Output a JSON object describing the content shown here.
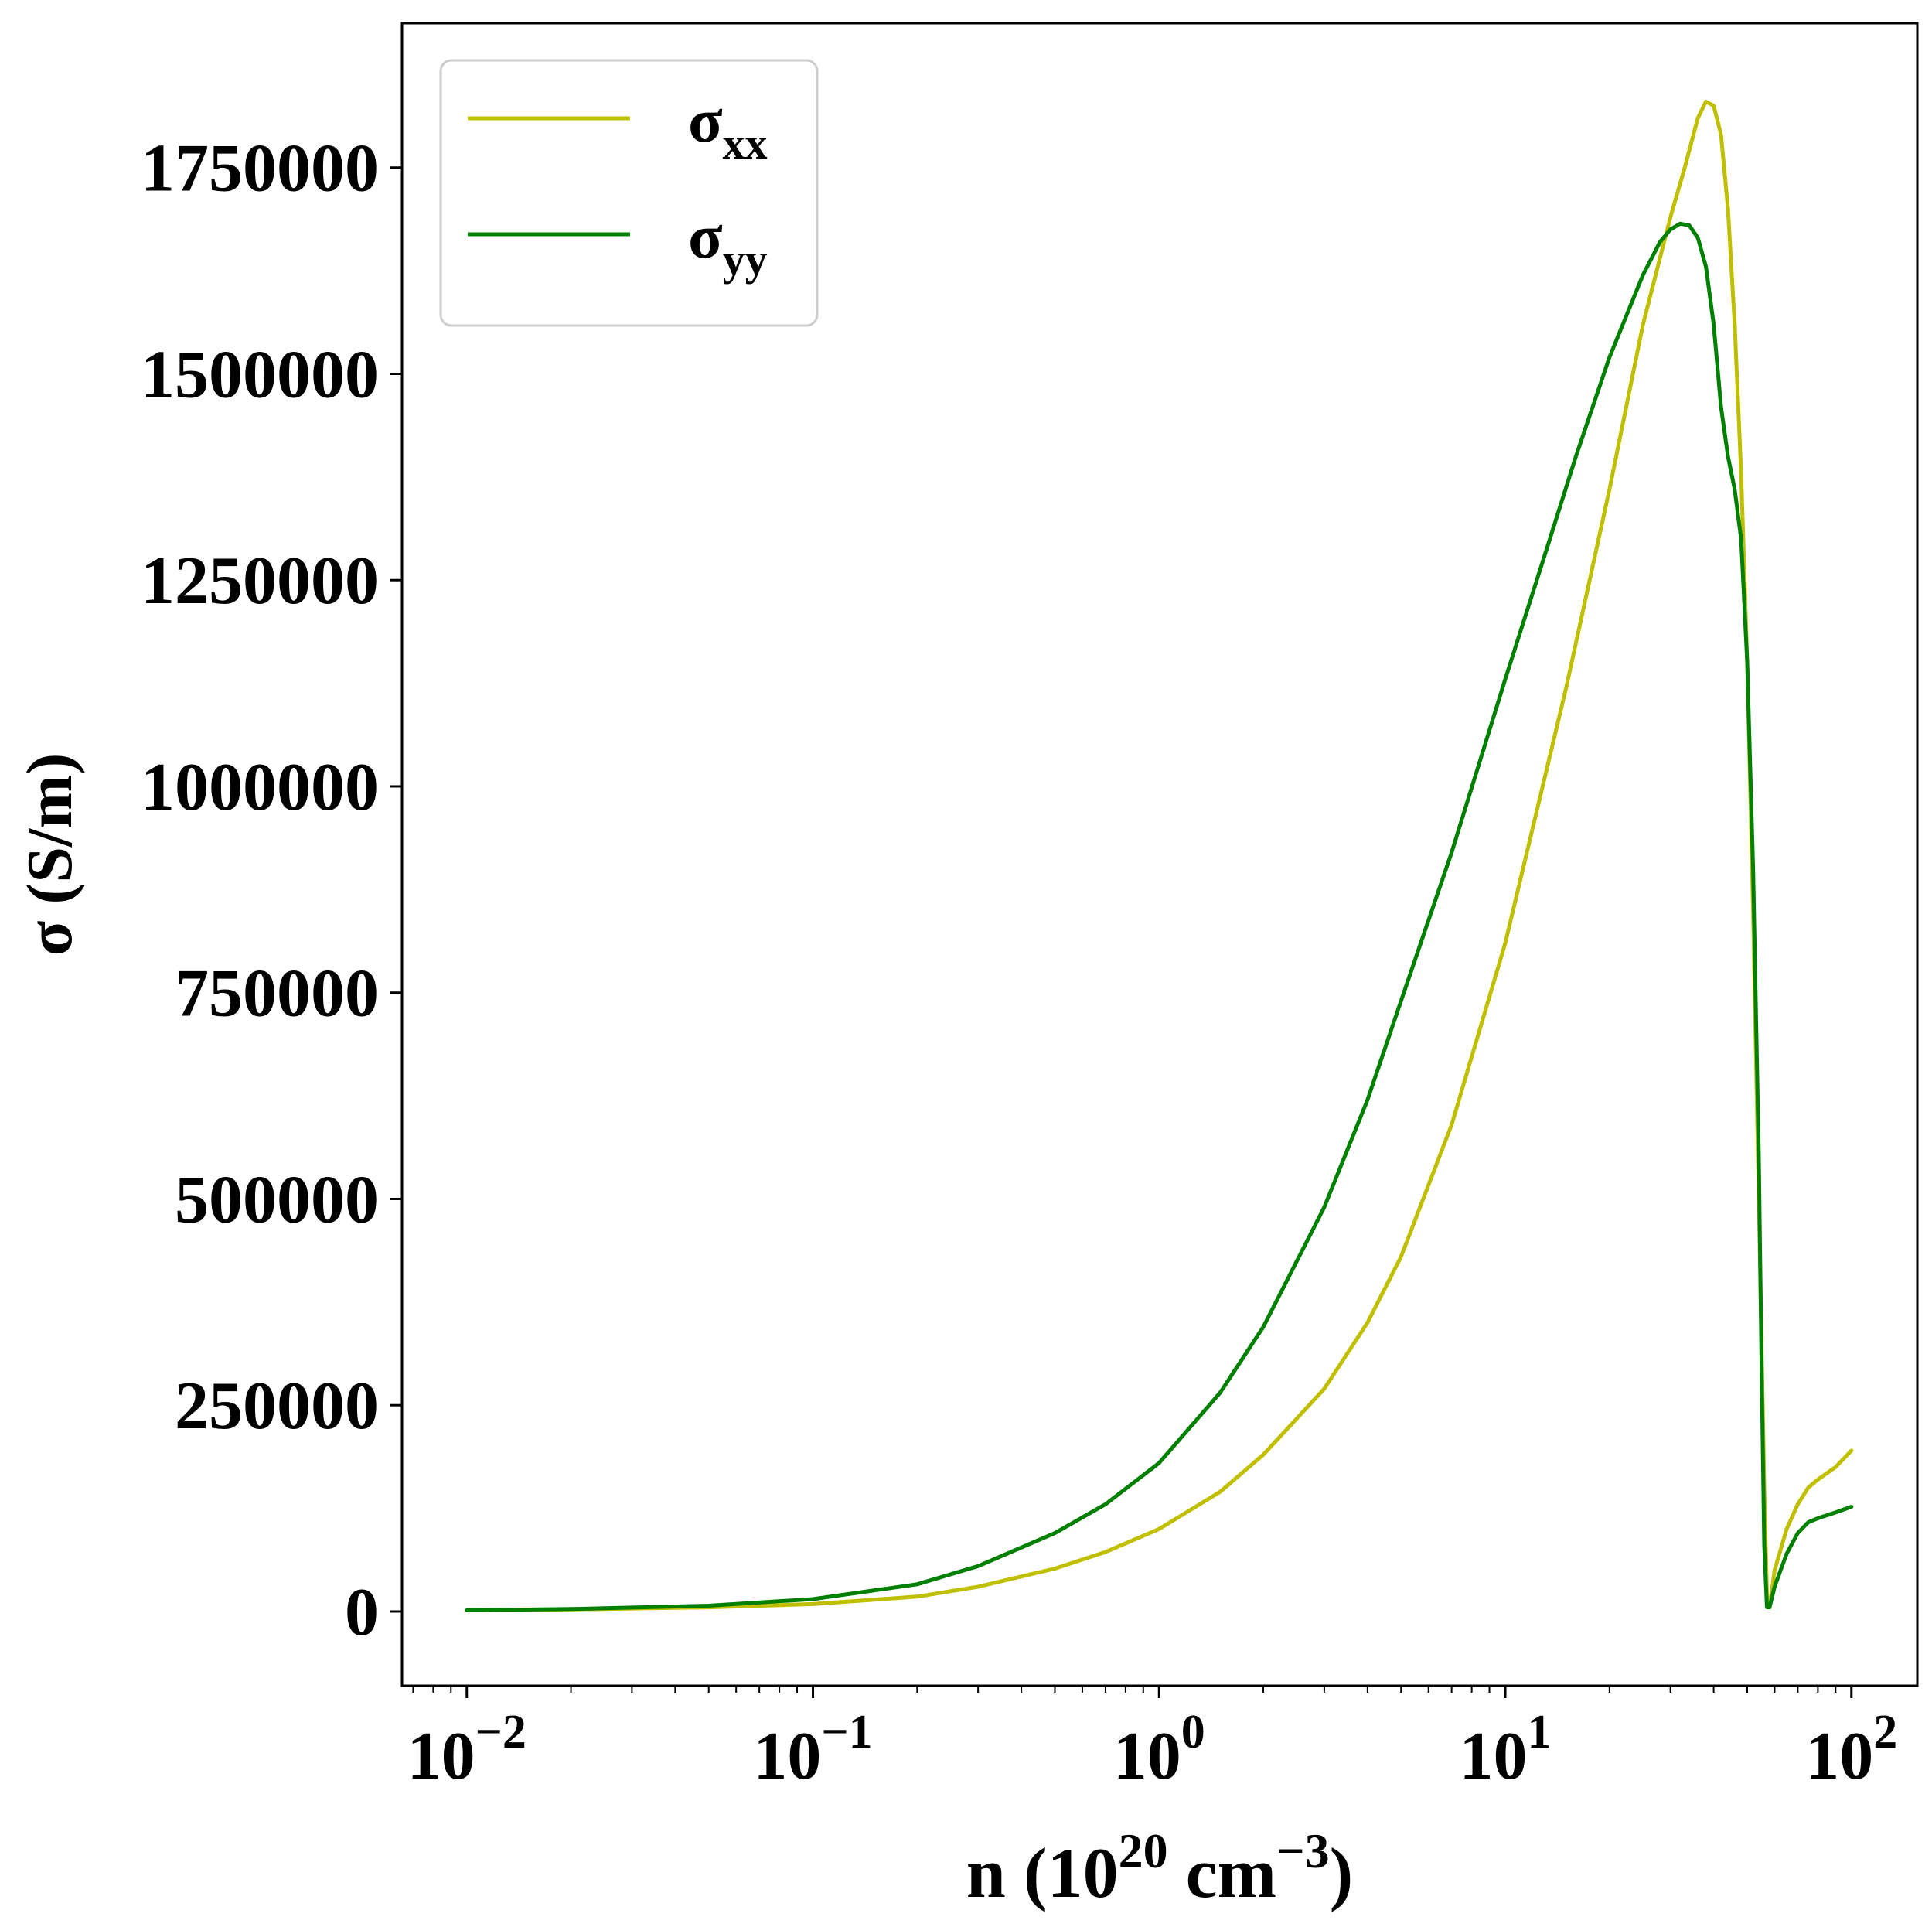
{
  "chart_data": {
    "type": "line",
    "xlabel": {
      "base": "n (10",
      "exp1": "20",
      "mid": " cm",
      "exp2": "−3",
      "end": ")"
    },
    "ylabel": "σ (S/m)",
    "x_scale": "log",
    "xlim": [
      0.0065,
      155
    ],
    "ylim": [
      -90000,
      1925000
    ],
    "x_ticks": [
      {
        "value": 0.01,
        "base": "10",
        "exp": "−2"
      },
      {
        "value": 0.1,
        "base": "10",
        "exp": "−1"
      },
      {
        "value": 1,
        "base": "10",
        "exp": "0"
      },
      {
        "value": 10,
        "base": "10",
        "exp": "1"
      },
      {
        "value": 100,
        "base": "10",
        "exp": "2"
      }
    ],
    "y_ticks": [
      {
        "value": 0,
        "label": "0"
      },
      {
        "value": 250000,
        "label": "250000"
      },
      {
        "value": 500000,
        "label": "500000"
      },
      {
        "value": 750000,
        "label": "750000"
      },
      {
        "value": 1000000,
        "label": "1000000"
      },
      {
        "value": 1250000,
        "label": "1250000"
      },
      {
        "value": 1500000,
        "label": "1500000"
      },
      {
        "value": 1750000,
        "label": "1750000"
      }
    ],
    "grid": false,
    "legend_position": "top-left",
    "series": [
      {
        "name": "σ",
        "subscript": "xx",
        "color": "#bfbf00",
        "x": [
          0.01,
          0.02,
          0.05,
          0.1,
          0.2,
          0.3,
          0.5,
          0.7,
          1,
          1.5,
          2,
          3,
          4,
          5,
          7,
          10,
          15,
          20,
          25,
          30,
          33,
          36,
          38,
          40,
          42,
          44,
          46,
          48,
          50,
          52,
          54,
          56,
          57,
          58,
          60,
          65,
          70,
          75,
          80,
          90,
          100
        ],
        "values": [
          1500,
          2500,
          5000,
          9000,
          18000,
          30000,
          52000,
          72000,
          100000,
          145000,
          190000,
          270000,
          350000,
          430000,
          590000,
          810000,
          1120000,
          1360000,
          1560000,
          1690000,
          1750000,
          1810000,
          1830000,
          1825000,
          1790000,
          1700000,
          1560000,
          1380000,
          1150000,
          850000,
          500000,
          150000,
          20000,
          5000,
          50000,
          100000,
          130000,
          150000,
          160000,
          175000,
          195000
        ]
      },
      {
        "name": "σ",
        "subscript": "yy",
        "color": "#008000",
        "x": [
          0.01,
          0.02,
          0.05,
          0.1,
          0.2,
          0.3,
          0.5,
          0.7,
          1,
          1.5,
          2,
          3,
          4,
          5,
          7,
          10,
          13,
          16,
          20,
          25,
          28,
          30,
          32,
          34,
          36,
          38,
          40,
          42,
          44,
          46,
          48,
          50,
          52,
          54,
          55,
          56,
          57,
          58,
          60,
          65,
          70,
          75,
          80,
          90,
          100
        ],
        "values": [
          1500,
          3000,
          7000,
          15000,
          33000,
          55000,
          95000,
          130000,
          180000,
          265000,
          345000,
          490000,
          620000,
          740000,
          920000,
          1130000,
          1280000,
          1400000,
          1520000,
          1620000,
          1660000,
          1675000,
          1682000,
          1680000,
          1665000,
          1630000,
          1560000,
          1460000,
          1400000,
          1360000,
          1300000,
          1150000,
          900000,
          550000,
          300000,
          80000,
          5000,
          5000,
          30000,
          70000,
          95000,
          108000,
          113000,
          120000,
          127000
        ]
      }
    ]
  }
}
